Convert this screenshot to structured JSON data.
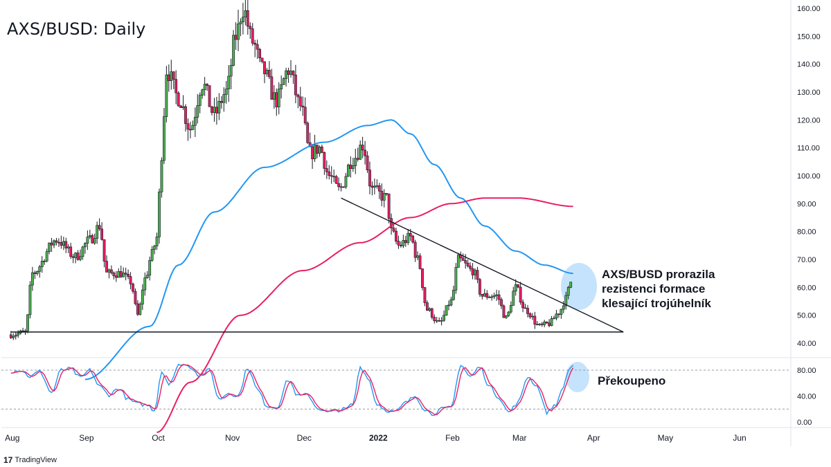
{
  "header": {
    "title": "AXS/BUSD: Daily"
  },
  "annotations": {
    "breakout": [
      "AXS/BUSD prorazila",
      "rezistenci formace",
      "klesající trojúhelník"
    ],
    "overbought": "Překoupeno"
  },
  "brand": {
    "logo": "17",
    "name": "TradingView"
  },
  "colors": {
    "up": "#4caf50",
    "down": "#e91e63",
    "wick": "#131722",
    "ma_fast": "#2196f3",
    "ma_slow": "#e91e63",
    "stoch_k": "#2196f3",
    "stoch_d": "#e91e63",
    "highlight": "#bbdefb"
  },
  "chart_data": [
    {
      "type": "candlestick",
      "symbol": "AXS/BUSD",
      "timeframe": "Daily",
      "y_axis": {
        "ticks": [
          "160.00",
          "150.00",
          "140.00",
          "130.00",
          "120.00",
          "110.00",
          "100.00",
          "90.00",
          "80.00",
          "70.00",
          "60.00",
          "50.00",
          "40.00"
        ],
        "ylim": [
          36,
          162
        ]
      },
      "x_axis": {
        "ticks": [
          "Aug",
          "Sep",
          "Oct",
          "Nov",
          "Dec",
          "2022",
          "Feb",
          "Mar",
          "Apr",
          "May",
          "Jun"
        ],
        "bold_ticks": [
          "2022"
        ]
      },
      "ohlc_keyframes": [
        [
          "2021-08-01",
          43
        ],
        [
          "2021-08-07",
          44
        ],
        [
          "2021-08-10",
          65
        ],
        [
          "2021-08-20",
          77
        ],
        [
          "2021-08-28",
          71
        ],
        [
          "2021-09-03",
          77
        ],
        [
          "2021-09-07",
          82
        ],
        [
          "2021-09-10",
          65
        ],
        [
          "2021-09-16",
          65
        ],
        [
          "2021-09-20",
          62
        ],
        [
          "2021-09-23",
          50
        ],
        [
          "2021-09-26",
          63
        ],
        [
          "2021-09-29",
          72
        ],
        [
          "2021-10-01",
          78
        ],
        [
          "2021-10-03",
          108
        ],
        [
          "2021-10-05",
          138
        ],
        [
          "2021-10-10",
          128
        ],
        [
          "2021-10-15",
          117
        ],
        [
          "2021-10-20",
          133
        ],
        [
          "2021-10-25",
          122
        ],
        [
          "2021-10-30",
          130
        ],
        [
          "2021-11-03",
          150
        ],
        [
          "2021-11-06",
          160
        ],
        [
          "2021-11-10",
          148
        ],
        [
          "2021-11-14",
          138
        ],
        [
          "2021-11-20",
          127
        ],
        [
          "2021-11-25",
          138
        ],
        [
          "2021-11-30",
          125
        ],
        [
          "2021-12-04",
          108
        ],
        [
          "2021-12-08",
          110
        ],
        [
          "2021-12-12",
          100
        ],
        [
          "2021-12-16",
          95
        ],
        [
          "2021-12-22",
          106
        ],
        [
          "2021-12-26",
          111
        ],
        [
          "2021-12-30",
          95
        ],
        [
          "2022-01-05",
          92
        ],
        [
          "2022-01-07",
          80
        ],
        [
          "2022-01-10",
          75
        ],
        [
          "2022-01-15",
          78
        ],
        [
          "2022-01-18",
          70
        ],
        [
          "2022-01-22",
          52
        ],
        [
          "2022-01-27",
          47
        ],
        [
          "2022-02-01",
          55
        ],
        [
          "2022-02-04",
          70
        ],
        [
          "2022-02-10",
          66
        ],
        [
          "2022-02-14",
          57
        ],
        [
          "2022-02-20",
          57
        ],
        [
          "2022-02-24",
          49
        ],
        [
          "2022-02-28",
          60
        ],
        [
          "2022-03-04",
          52
        ],
        [
          "2022-03-10",
          46
        ],
        [
          "2022-03-14",
          47
        ],
        [
          "2022-03-18",
          51
        ],
        [
          "2022-03-21",
          56
        ],
        [
          "2022-03-23",
          62
        ]
      ],
      "ma_fast": {
        "keyframes": [
          [
            "2021-09-01",
            27
          ],
          [
            "2021-09-28",
            46
          ],
          [
            "2021-10-10",
            68
          ],
          [
            "2021-10-25",
            87
          ],
          [
            "2021-11-15",
            103
          ],
          [
            "2021-12-10",
            112
          ],
          [
            "2021-12-28",
            118
          ],
          [
            "2022-01-07",
            120
          ],
          [
            "2022-01-15",
            115
          ],
          [
            "2022-01-25",
            104
          ],
          [
            "2022-02-05",
            92
          ],
          [
            "2022-02-15",
            82
          ],
          [
            "2022-02-28",
            73
          ],
          [
            "2022-03-12",
            68
          ],
          [
            "2022-03-24",
            65
          ]
        ]
      },
      "ma_slow": {
        "keyframes": [
          [
            "2021-10-01",
            8
          ],
          [
            "2021-10-15",
            26
          ],
          [
            "2021-11-05",
            50
          ],
          [
            "2021-12-01",
            66
          ],
          [
            "2021-12-25",
            76
          ],
          [
            "2022-01-15",
            85
          ],
          [
            "2022-02-01",
            90
          ],
          [
            "2022-02-15",
            92
          ],
          [
            "2022-03-01",
            92
          ],
          [
            "2022-03-24",
            89
          ]
        ]
      },
      "trendlines": [
        {
          "name": "support",
          "from": [
            "2021-08-01",
            44
          ],
          "to": [
            "2022-04-14",
            44
          ]
        },
        {
          "name": "descending-resistance",
          "from": [
            "2021-12-17",
            92
          ],
          "to": [
            "2022-04-14",
            44
          ]
        }
      ]
    },
    {
      "type": "line",
      "name": "stochastic-oscillator",
      "y_axis": {
        "ticks": [
          "80.00",
          "40.00",
          "0.00"
        ],
        "ylim": [
          -2,
          98
        ],
        "guides": [
          80,
          20
        ]
      },
      "k_keyframes": [
        [
          "2021-08-01",
          78
        ],
        [
          "2021-08-05",
          80
        ],
        [
          "2021-08-09",
          70
        ],
        [
          "2021-08-13",
          78
        ],
        [
          "2021-08-18",
          45
        ],
        [
          "2021-08-22",
          80
        ],
        [
          "2021-08-26",
          82
        ],
        [
          "2021-08-30",
          68
        ],
        [
          "2021-09-03",
          80
        ],
        [
          "2021-09-07",
          55
        ],
        [
          "2021-09-11",
          42
        ],
        [
          "2021-09-15",
          52
        ],
        [
          "2021-09-19",
          35
        ],
        [
          "2021-09-23",
          28
        ],
        [
          "2021-09-27",
          26
        ],
        [
          "2021-09-30",
          18
        ],
        [
          "2021-10-03",
          78
        ],
        [
          "2021-10-06",
          60
        ],
        [
          "2021-10-11",
          90
        ],
        [
          "2021-10-15",
          85
        ],
        [
          "2021-10-19",
          72
        ],
        [
          "2021-10-23",
          80
        ],
        [
          "2021-10-27",
          35
        ],
        [
          "2021-10-31",
          45
        ],
        [
          "2021-11-04",
          40
        ],
        [
          "2021-11-08",
          84
        ],
        [
          "2021-11-12",
          50
        ],
        [
          "2021-11-16",
          25
        ],
        [
          "2021-11-20",
          22
        ],
        [
          "2021-11-25",
          65
        ],
        [
          "2021-11-29",
          40
        ],
        [
          "2021-12-03",
          42
        ],
        [
          "2021-12-07",
          22
        ],
        [
          "2021-12-11",
          15
        ],
        [
          "2021-12-15",
          18
        ],
        [
          "2021-12-19",
          20
        ],
        [
          "2021-12-22",
          28
        ],
        [
          "2021-12-25",
          85
        ],
        [
          "2021-12-28",
          70
        ],
        [
          "2022-01-01",
          28
        ],
        [
          "2022-01-05",
          18
        ],
        [
          "2022-01-09",
          16
        ],
        [
          "2022-01-13",
          30
        ],
        [
          "2022-01-17",
          40
        ],
        [
          "2022-01-21",
          20
        ],
        [
          "2022-01-24",
          12
        ],
        [
          "2022-01-28",
          20
        ],
        [
          "2022-02-01",
          22
        ],
        [
          "2022-02-05",
          88
        ],
        [
          "2022-02-09",
          70
        ],
        [
          "2022-02-13",
          85
        ],
        [
          "2022-02-17",
          55
        ],
        [
          "2022-02-21",
          38
        ],
        [
          "2022-02-25",
          15
        ],
        [
          "2022-03-01",
          30
        ],
        [
          "2022-03-05",
          70
        ],
        [
          "2022-03-09",
          55
        ],
        [
          "2022-03-13",
          15
        ],
        [
          "2022-03-17",
          28
        ],
        [
          "2022-03-20",
          55
        ],
        [
          "2022-03-22",
          80
        ],
        [
          "2022-03-24",
          88
        ]
      ]
    }
  ]
}
